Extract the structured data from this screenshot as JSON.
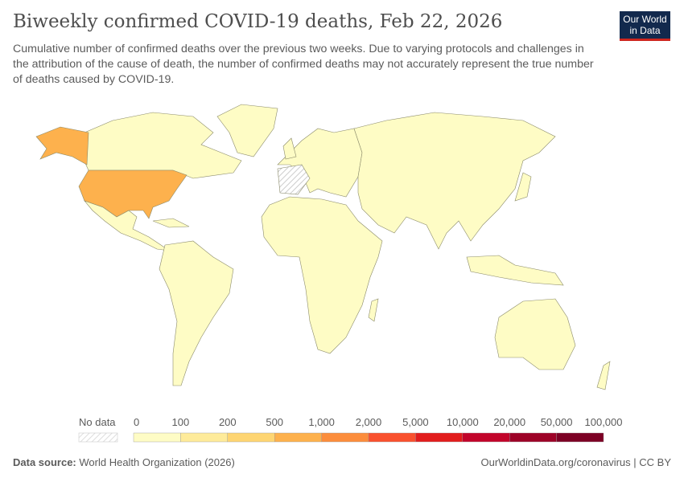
{
  "header": {
    "title": "Biweekly confirmed COVID-19 deaths, Feb 22, 2026",
    "subtitle": "Cumulative number of confirmed deaths over the previous two weeks. Due to varying protocols and challenges in the attribution of the cause of death, the number of confirmed deaths may not accurately represent the true number of deaths caused by COVID-19.",
    "logo": "Our World in Data"
  },
  "map": {
    "regions": [
      {
        "name": "United States",
        "bin": "500-1,000",
        "color": "#fdb14d"
      },
      {
        "name": "Spain",
        "bin": "No data",
        "color": "hatched"
      },
      {
        "name": "Portugal",
        "bin": "No data",
        "color": "hatched"
      },
      {
        "name": "Other countries",
        "bin": "0-100",
        "color": "#fefcc5"
      }
    ]
  },
  "legend": {
    "no_data_label": "No data",
    "ticks": [
      "0",
      "100",
      "200",
      "500",
      "1,000",
      "2,000",
      "5,000",
      "10,000",
      "20,000",
      "50,000",
      "100,000"
    ],
    "colors": [
      "#fefcc5",
      "#feeb9a",
      "#fed572",
      "#fdb14d",
      "#fc8d3c",
      "#f9512e",
      "#e21c1c",
      "#c2042a",
      "#9d0227",
      "#7c0024"
    ]
  },
  "footer": {
    "source_label": "Data source:",
    "source": "World Health Organization (2026)",
    "link": "OurWorldinData.org/coronavirus | CC BY"
  }
}
